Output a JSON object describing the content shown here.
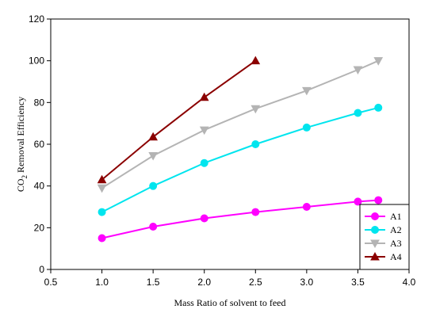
{
  "chart_data": {
    "type": "line",
    "title": "",
    "xlabel": "Mass Ratio of solvent to feed",
    "ylabel_main": "CO",
    "ylabel_sub": "2",
    "ylabel_rest": " Removal Efficiency",
    "xlim": [
      0.5,
      4.0
    ],
    "ylim": [
      0,
      120
    ],
    "xticks": [
      "0.5",
      "1.0",
      "1.5",
      "2.0",
      "2.5",
      "3.0",
      "3.5",
      "4.0"
    ],
    "yticks": [
      "0",
      "20",
      "40",
      "60",
      "80",
      "100",
      "120"
    ],
    "grid": false,
    "legend_position": "bottom-right",
    "series": [
      {
        "name": "A1",
        "color": "#ff00ff",
        "marker": "circle",
        "x": [
          1.0,
          1.5,
          2.0,
          2.5,
          3.0,
          3.5,
          3.7
        ],
        "y": [
          15,
          20.5,
          24.5,
          27.5,
          30,
          32.5,
          33.2
        ]
      },
      {
        "name": "A2",
        "color": "#00e5ee",
        "marker": "circle",
        "x": [
          1.0,
          1.5,
          2.0,
          2.5,
          3.0,
          3.5,
          3.7
        ],
        "y": [
          27.5,
          40,
          51,
          60,
          68,
          75,
          77.5
        ]
      },
      {
        "name": "A3",
        "color": "#b4b4b4",
        "marker": "triangle-down",
        "x": [
          1.0,
          1.5,
          2.0,
          2.5,
          3.0,
          3.5,
          3.7
        ],
        "y": [
          39,
          54.5,
          66.8,
          77,
          85.7,
          95.7,
          100
        ]
      },
      {
        "name": "A4",
        "color": "#8b0000",
        "marker": "triangle-up",
        "x": [
          1.0,
          1.5,
          2.0,
          2.5
        ],
        "y": [
          43,
          63.5,
          82.5,
          100
        ]
      }
    ]
  }
}
